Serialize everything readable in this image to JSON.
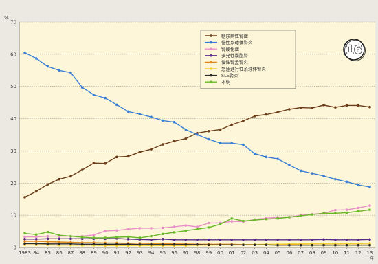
{
  "chart_data": {
    "type": "line",
    "ylabel": "%",
    "ylim": [
      0,
      70
    ],
    "yticks": [
      0,
      10,
      20,
      30,
      40,
      50,
      60,
      70
    ],
    "x_tick_labels": [
      "1983",
      "84",
      "85",
      "86",
      "87",
      "88",
      "89",
      "90",
      "91",
      "92",
      "93",
      "94",
      "95",
      "96",
      "97",
      "98",
      "99",
      "00",
      "01",
      "02",
      "03",
      "04",
      "05",
      "06",
      "07",
      "08",
      "09",
      "10",
      "11",
      "12",
      "13"
    ],
    "x_axis_suffix": "年",
    "grid": true,
    "legend_position": "top-center",
    "badge_text": "16",
    "background_color": "#fdf6d8",
    "series": [
      {
        "name": "糖尿病性腎症",
        "color": "#6b3d1a",
        "marker": "circle",
        "values": [
          15.6,
          17.4,
          19.6,
          21.2,
          22.1,
          24.1,
          26.2,
          26.1,
          28.1,
          28.3,
          29.6,
          30.5,
          32.0,
          33.0,
          33.8,
          35.5,
          36.1,
          36.6,
          38.1,
          39.3,
          40.8,
          41.3,
          42.0,
          42.9,
          43.4,
          43.3,
          44.2,
          43.5,
          44.1,
          44.1,
          43.6
        ]
      },
      {
        "name": "慢性糸球体腎炎",
        "color": "#3a7fd5",
        "marker": "circle",
        "values": [
          60.5,
          58.7,
          56.2,
          55.0,
          54.3,
          49.7,
          47.4,
          46.4,
          44.3,
          42.2,
          41.4,
          40.5,
          39.4,
          38.9,
          36.6,
          35.0,
          33.6,
          32.4,
          32.4,
          31.9,
          29.1,
          28.1,
          27.5,
          25.6,
          23.8,
          23.0,
          22.2,
          21.2,
          20.4,
          19.4,
          18.8
        ]
      },
      {
        "name": "腎硬化症",
        "color": "#e890c8",
        "marker": "circle",
        "values": [
          3.3,
          3.3,
          3.5,
          3.5,
          3.5,
          3.5,
          3.9,
          5.1,
          5.3,
          5.7,
          6.0,
          6.0,
          6.1,
          6.4,
          6.8,
          6.4,
          7.6,
          7.6,
          8.1,
          8.0,
          8.7,
          9.1,
          9.4,
          9.4,
          10.0,
          10.3,
          10.6,
          11.6,
          11.7,
          12.3,
          13.0
        ]
      },
      {
        "name": "多発性嚢胞腎",
        "color": "#5a2a8a",
        "marker": "circle",
        "values": [
          2.6,
          2.6,
          2.7,
          2.7,
          2.7,
          2.7,
          2.7,
          2.7,
          2.8,
          2.6,
          2.5,
          2.4,
          2.6,
          2.4,
          2.4,
          2.4,
          2.4,
          2.4,
          2.4,
          2.4,
          2.4,
          2.4,
          2.4,
          2.4,
          2.4,
          2.4,
          2.5,
          2.4,
          2.4,
          2.4,
          2.5
        ]
      },
      {
        "name": "慢性腎盂腎炎",
        "color": "#e08a20",
        "marker": "circle",
        "values": [
          1.9,
          1.9,
          1.8,
          1.7,
          1.6,
          1.5,
          1.5,
          1.4,
          1.4,
          1.3,
          1.3,
          1.2,
          1.2,
          1.1,
          1.1,
          1.0,
          1.0,
          1.0,
          1.0,
          0.9,
          0.9,
          0.9,
          0.9,
          0.9,
          0.8,
          0.8,
          0.8,
          0.8,
          0.8,
          0.8,
          0.8
        ]
      },
      {
        "name": "急速進行性糸球体腎炎",
        "color": "#f0d030",
        "marker": "circle",
        "values": [
          0.8,
          0.8,
          0.8,
          0.7,
          0.7,
          0.7,
          0.7,
          0.6,
          0.6,
          0.6,
          0.6,
          0.6,
          0.6,
          0.6,
          0.6,
          0.7,
          0.7,
          0.8,
          0.8,
          0.9,
          0.9,
          1.0,
          1.0,
          1.1,
          1.1,
          1.2,
          1.2,
          1.2,
          1.2,
          1.2,
          1.3
        ]
      },
      {
        "name": "SLE腎炎",
        "color": "#2a2a2a",
        "marker": "circle",
        "values": [
          1.2,
          1.2,
          1.1,
          1.1,
          1.1,
          1.0,
          1.0,
          1.0,
          1.0,
          1.0,
          0.9,
          0.9,
          0.9,
          0.9,
          0.9,
          0.9,
          0.8,
          0.8,
          0.8,
          0.8,
          0.8,
          0.8,
          0.7,
          0.7,
          0.7,
          0.7,
          0.7,
          0.7,
          0.7,
          0.7,
          0.7
        ]
      },
      {
        "name": "不明",
        "color": "#6ab82a",
        "marker": "square",
        "values": [
          4.4,
          4.0,
          4.8,
          3.8,
          3.5,
          3.2,
          3.0,
          3.0,
          3.2,
          3.3,
          3.0,
          3.5,
          4.2,
          4.7,
          5.2,
          5.7,
          6.2,
          7.2,
          9.0,
          8.2,
          8.5,
          8.8,
          9.0,
          9.4,
          9.8,
          10.2,
          10.6,
          10.6,
          10.8,
          11.2,
          11.7
        ]
      }
    ]
  }
}
